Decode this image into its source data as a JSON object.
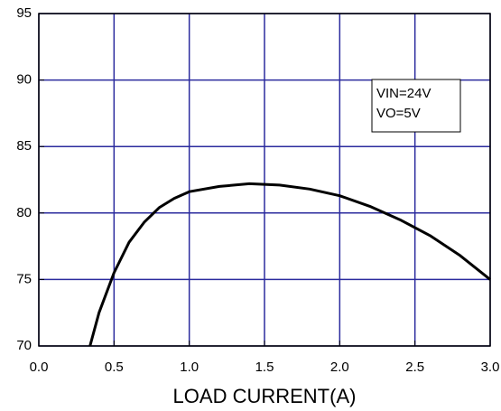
{
  "chart_data": {
    "type": "line",
    "x_label": "LOAD CURRENT(A)",
    "annotations": [
      "VIN=24V",
      "VO=5V"
    ],
    "x": [
      0.34,
      0.4,
      0.5,
      0.6,
      0.7,
      0.8,
      0.9,
      1.0,
      1.2,
      1.4,
      1.6,
      1.8,
      2.0,
      2.2,
      2.4,
      2.6,
      2.8,
      3.0
    ],
    "values": [
      70,
      72.5,
      75.5,
      77.8,
      79.3,
      80.4,
      81.1,
      81.6,
      82.0,
      82.2,
      82.1,
      81.8,
      81.3,
      80.5,
      79.5,
      78.3,
      76.8,
      75.0
    ],
    "color": "#000000",
    "grid_color": "#2b2b9e",
    "grid": true,
    "xlim": [
      0,
      3
    ],
    "xticks": [
      {
        "value": 0,
        "label": "0.0"
      },
      0.5,
      {
        "value": 1,
        "label": "1.0"
      },
      1.5,
      {
        "value": 2,
        "label": "2.0"
      },
      2.5,
      {
        "value": 3,
        "label": "3.0"
      }
    ],
    "ylim": [
      70,
      95
    ],
    "yticks": [
      70,
      75,
      80,
      85,
      90,
      95
    ]
  }
}
